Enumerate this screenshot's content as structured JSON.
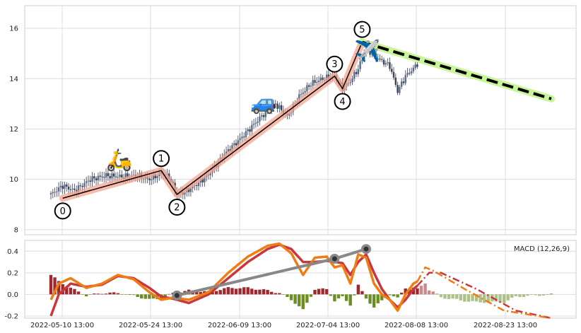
{
  "chart_data": [
    {
      "type": "candlestick",
      "title": "",
      "xlabel": "",
      "ylabel": "",
      "ylim": [
        7.8,
        16.9
      ],
      "yticks": [
        8,
        10,
        12,
        14,
        16
      ],
      "grid": true,
      "x_ticks": [
        "2022-05-10 13:00",
        "2022-05-24 13:00",
        "2022-06-09 13:00",
        "2022-07-04 13:00",
        "2022-08-08 13:00",
        "2022-08-23 13:00"
      ],
      "price_anchors": [
        [
          0,
          9.4
        ],
        [
          3,
          9.75
        ],
        [
          6,
          9.55
        ],
        [
          10,
          10.0
        ],
        [
          14,
          10.15
        ],
        [
          18,
          10.1
        ],
        [
          22,
          10.15
        ],
        [
          25,
          10.0
        ],
        [
          28,
          10.25
        ],
        [
          30,
          10.1
        ],
        [
          32,
          9.4
        ],
        [
          34,
          9.5
        ],
        [
          37,
          9.8
        ],
        [
          40,
          10.2
        ],
        [
          44,
          11.0
        ],
        [
          48,
          11.6
        ],
        [
          51,
          12.1
        ],
        [
          54,
          12.6
        ],
        [
          57,
          13.0
        ],
        [
          60,
          12.5
        ],
        [
          63,
          13.3
        ],
        [
          66,
          13.8
        ],
        [
          69,
          14.0
        ],
        [
          72,
          14.1
        ],
        [
          74,
          13.6
        ],
        [
          76,
          13.9
        ],
        [
          78,
          14.4
        ],
        [
          80,
          15.2
        ],
        [
          82,
          14.9
        ],
        [
          84,
          14.7
        ],
        [
          86,
          14.5
        ],
        [
          88,
          13.5
        ],
        [
          90,
          14.1
        ],
        [
          92,
          14.4
        ],
        [
          93,
          14.6
        ]
      ],
      "wave_points": [
        {
          "label": "0",
          "x": 3,
          "y": 9.25
        },
        {
          "label": "1",
          "x": 28,
          "y": 10.35
        },
        {
          "label": "2",
          "x": 32,
          "y": 9.4
        },
        {
          "label": "3",
          "x": 72,
          "y": 14.1
        },
        {
          "label": "4",
          "x": 74,
          "y": 13.6
        },
        {
          "label": "5",
          "x": 79,
          "y": 15.45
        }
      ],
      "projection": {
        "from": {
          "x": 79,
          "y": 15.45
        },
        "to": {
          "x": 127,
          "y": 13.2
        }
      },
      "emojis": [
        "🛵",
        "🚙",
        "✈️"
      ]
    },
    {
      "type": "macd",
      "legend": "MACD (12,26,9)",
      "ylim": [
        -0.22,
        0.5
      ],
      "yticks": [
        -0.2,
        0.0,
        0.2,
        0.4
      ],
      "grid": true,
      "macd_anchors": [
        [
          0,
          -0.05
        ],
        [
          2,
          0.1
        ],
        [
          5,
          0.15
        ],
        [
          9,
          0.06
        ],
        [
          13,
          0.1
        ],
        [
          17,
          0.18
        ],
        [
          21,
          0.14
        ],
        [
          25,
          0.02
        ],
        [
          28,
          -0.05
        ],
        [
          31,
          -0.03
        ],
        [
          35,
          -0.05
        ],
        [
          40,
          0.02
        ],
        [
          45,
          0.2
        ],
        [
          50,
          0.35
        ],
        [
          55,
          0.45
        ],
        [
          58,
          0.47
        ],
        [
          61,
          0.38
        ],
        [
          64,
          0.18
        ],
        [
          67,
          0.34
        ],
        [
          70,
          0.35
        ],
        [
          72,
          0.25
        ],
        [
          74,
          0.27
        ],
        [
          76,
          0.1
        ],
        [
          78,
          0.37
        ],
        [
          80,
          0.34
        ],
        [
          82,
          0.1
        ],
        [
          84,
          0.0
        ],
        [
          86,
          -0.05
        ],
        [
          88,
          -0.15
        ],
        [
          90,
          0.0
        ],
        [
          92,
          0.1
        ],
        [
          93,
          0.12
        ]
      ],
      "signal_anchors": [
        [
          0,
          -0.2
        ],
        [
          2,
          0.0
        ],
        [
          5,
          0.1
        ],
        [
          9,
          0.07
        ],
        [
          13,
          0.09
        ],
        [
          17,
          0.17
        ],
        [
          21,
          0.15
        ],
        [
          25,
          0.06
        ],
        [
          28,
          -0.02
        ],
        [
          31,
          -0.04
        ],
        [
          35,
          -0.08
        ],
        [
          40,
          0.0
        ],
        [
          45,
          0.15
        ],
        [
          50,
          0.3
        ],
        [
          55,
          0.42
        ],
        [
          58,
          0.46
        ],
        [
          61,
          0.42
        ],
        [
          64,
          0.3
        ],
        [
          67,
          0.3
        ],
        [
          70,
          0.31
        ],
        [
          72,
          0.3
        ],
        [
          74,
          0.29
        ],
        [
          76,
          0.18
        ],
        [
          78,
          0.3
        ],
        [
          80,
          0.37
        ],
        [
          82,
          0.2
        ],
        [
          84,
          0.05
        ],
        [
          86,
          -0.05
        ],
        [
          88,
          -0.12
        ],
        [
          90,
          -0.05
        ],
        [
          92,
          0.05
        ],
        [
          93,
          0.08
        ]
      ],
      "macd_projection_anchors": [
        [
          93,
          0.12
        ],
        [
          95,
          0.25
        ],
        [
          97,
          0.22
        ],
        [
          105,
          0.05
        ],
        [
          115,
          -0.15
        ],
        [
          127,
          -0.22
        ]
      ],
      "signal_projection_anchors": [
        [
          93,
          0.08
        ],
        [
          96,
          0.2
        ],
        [
          99,
          0.2
        ],
        [
          108,
          0.05
        ],
        [
          118,
          -0.15
        ],
        [
          127,
          -0.22
        ]
      ],
      "trend_points": [
        {
          "x": 32,
          "y": -0.01
        },
        {
          "x": 72,
          "y": 0.33
        },
        {
          "x": 80,
          "y": 0.42
        }
      ],
      "colors": {
        "macd": "#f07c14",
        "signal": "#c8373c",
        "hist_pos": "#a0282d",
        "hist_neg": "#6b8e23",
        "trend": "#888888"
      }
    }
  ]
}
